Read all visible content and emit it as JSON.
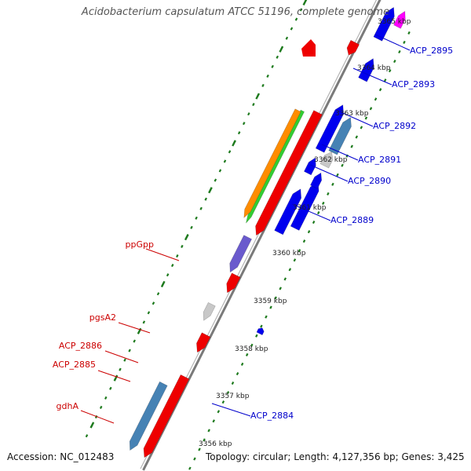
{
  "title": "Acidobacterium capsulatum ATCC 51196, complete genome",
  "footer": {
    "accession": "Accession: NC_012483",
    "summary": "Topology: circular; Length: 4,127,356 bp; Genes: 3,425"
  },
  "colors": {
    "backbone": "#8c8c8c",
    "ticks": "#1d7a1d",
    "forward_label": "#0000cc",
    "reverse_label": "#cc0000",
    "cds_forward": "#0000ee",
    "cds_reverse": "#ee0000",
    "pseudo": "#c8c8c8",
    "steel": "#4682b4",
    "orange": "#ff8c00",
    "green": "#32cd32",
    "purple": "#6a5acd",
    "magenta": "#ff00ff"
  },
  "scale_labels": [
    "3356 kbp",
    "3357 kbp",
    "3358 kbp",
    "3359 kbp",
    "3360 kbp",
    "3361 kbp",
    "3362 kbp",
    "3363 kbp",
    "3364 kbp",
    "3365 kbp"
  ],
  "forward_gene_labels": [
    "ACP_2895",
    "ACP_2893",
    "ACP_2892",
    "ACP_2891",
    "ACP_2890",
    "ACP_2889",
    "ACP_2884"
  ],
  "reverse_gene_labels": [
    "ppGpp",
    "pgsA2",
    "ACP_2886",
    "ACP_2885",
    "gdhA"
  ]
}
